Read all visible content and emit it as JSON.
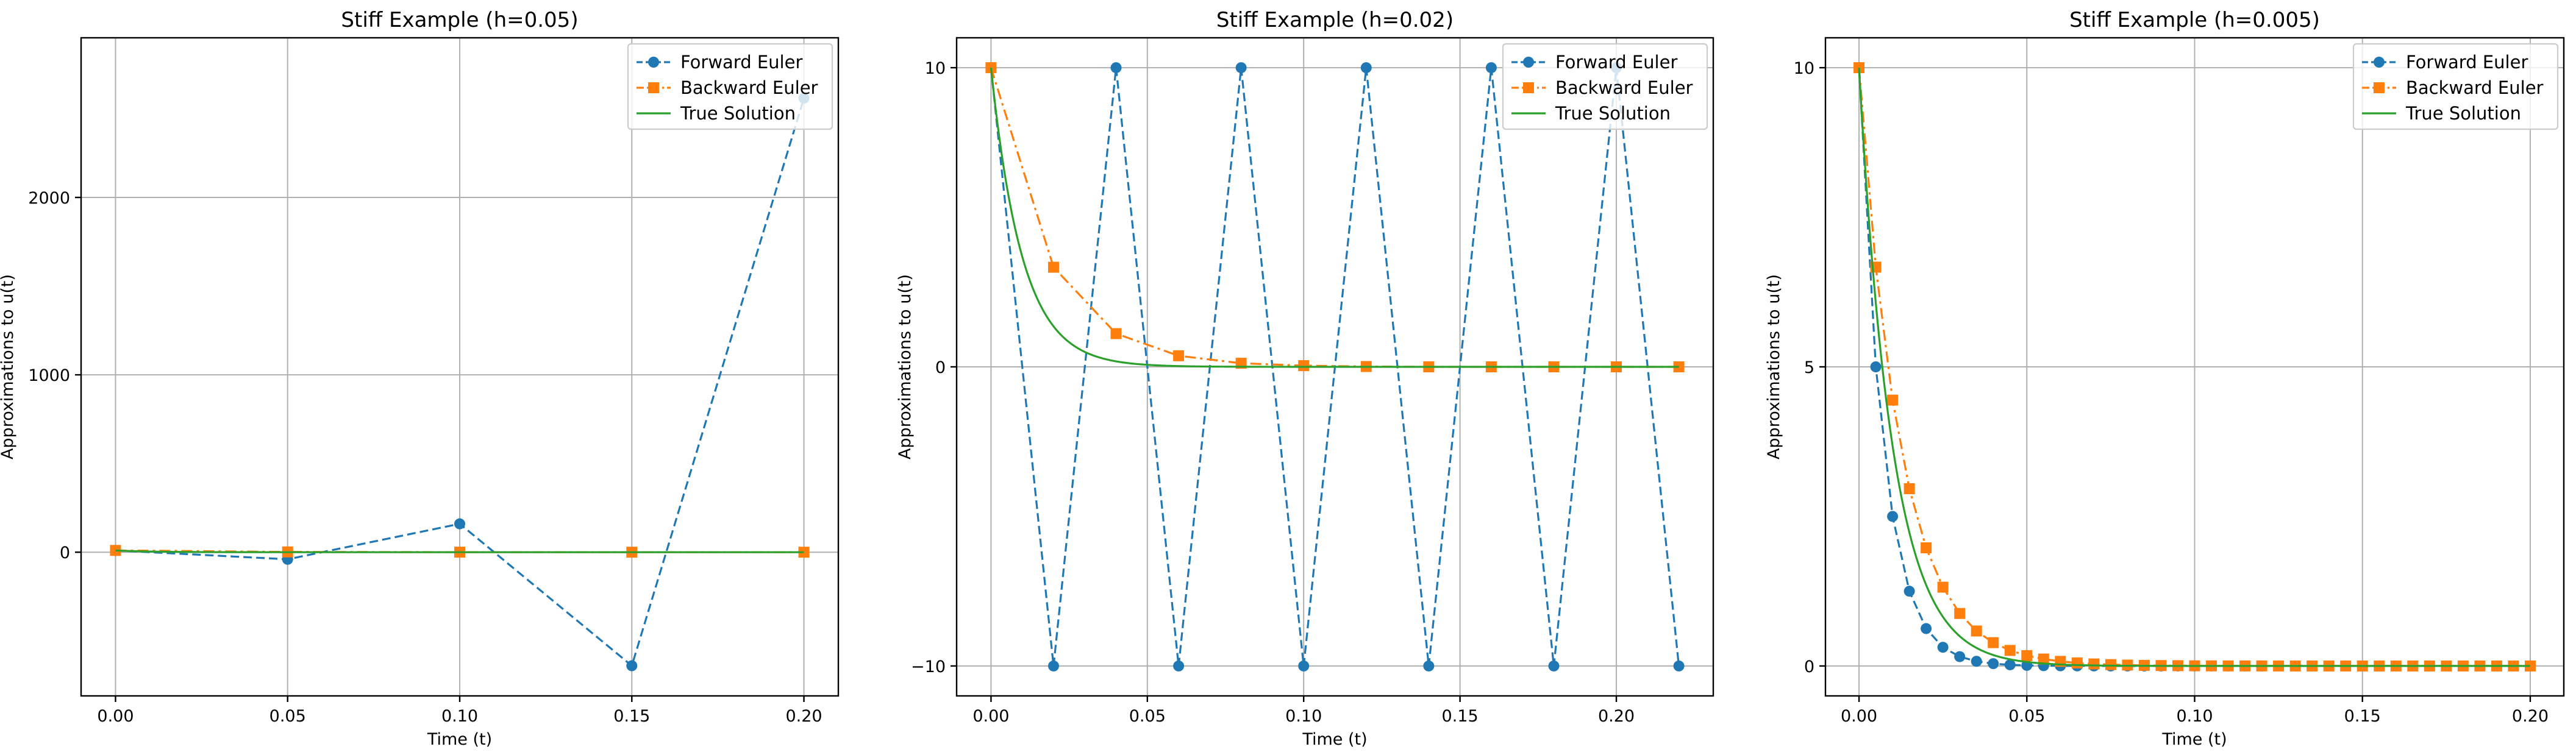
{
  "chart_data": [
    {
      "type": "line",
      "title": "Stiff Example (h=0.05)",
      "xlabel": "Time (t)",
      "ylabel": "Approximations to u(t)",
      "xlim": [
        -0.01,
        0.21
      ],
      "ylim": [
        -810,
        2900
      ],
      "xticks": [
        0.0,
        0.05,
        0.1,
        0.15,
        0.2
      ],
      "xtick_labels": [
        "0.00",
        "0.05",
        "0.10",
        "0.15",
        "0.20"
      ],
      "yticks": [
        0,
        1000,
        2000
      ],
      "ytick_labels": [
        "0",
        "1000",
        "2000"
      ],
      "grid": true,
      "legend_position": "top-right",
      "series": [
        {
          "name": "Forward Euler",
          "color": "#1f77b4",
          "linestyle": "dashed",
          "marker": "circle",
          "x": [
            0.0,
            0.05,
            0.1,
            0.15,
            0.2
          ],
          "y": [
            10,
            -40,
            160,
            -640,
            2560
          ]
        },
        {
          "name": "Backward Euler",
          "color": "#ff7f0e",
          "linestyle": "dashdot",
          "marker": "square",
          "x": [
            0.0,
            0.05,
            0.1,
            0.15,
            0.2
          ],
          "y": [
            10,
            1.67,
            0.28,
            0.05,
            0.01
          ]
        },
        {
          "name": "True Solution",
          "color": "#2ca02c",
          "linestyle": "solid",
          "marker": "none",
          "function": "10*exp(-100*t)",
          "xrange": [
            0.0,
            0.2
          ]
        }
      ]
    },
    {
      "type": "line",
      "title": "Stiff Example (h=0.02)",
      "xlabel": "Time (t)",
      "ylabel": "Approximations to u(t)",
      "xlim": [
        -0.011,
        0.231
      ],
      "ylim": [
        -11,
        11
      ],
      "xticks": [
        0.0,
        0.05,
        0.1,
        0.15,
        0.2
      ],
      "xtick_labels": [
        "0.00",
        "0.05",
        "0.10",
        "0.15",
        "0.20"
      ],
      "yticks": [
        -10,
        0,
        10
      ],
      "ytick_labels": [
        "−10",
        "0",
        "10"
      ],
      "grid": true,
      "legend_position": "top-right",
      "series": [
        {
          "name": "Forward Euler",
          "color": "#1f77b4",
          "linestyle": "dashed",
          "marker": "circle",
          "x": [
            0.0,
            0.02,
            0.04,
            0.06,
            0.08,
            0.1,
            0.12,
            0.14,
            0.16,
            0.18,
            0.2,
            0.22
          ],
          "y": [
            10,
            -10,
            10,
            -10,
            10,
            -10,
            10,
            -10,
            10,
            -10,
            10,
            -10
          ]
        },
        {
          "name": "Backward Euler",
          "color": "#ff7f0e",
          "linestyle": "dashdot",
          "marker": "square",
          "x": [
            0.0,
            0.02,
            0.04,
            0.06,
            0.08,
            0.1,
            0.12,
            0.14,
            0.16,
            0.18,
            0.2,
            0.22
          ],
          "y": [
            10,
            3.33,
            1.11,
            0.37,
            0.12,
            0.04,
            0.01,
            0.0,
            0.0,
            0.0,
            0.0,
            0.0
          ]
        },
        {
          "name": "True Solution",
          "color": "#2ca02c",
          "linestyle": "solid",
          "marker": "none",
          "function": "10*exp(-100*t)",
          "xrange": [
            0.0,
            0.22
          ]
        }
      ]
    },
    {
      "type": "line",
      "title": "Stiff Example (h=0.005)",
      "xlabel": "Time (t)",
      "ylabel": "Approximations to u(t)",
      "xlim": [
        -0.01,
        0.21
      ],
      "ylim": [
        -0.5,
        10.5
      ],
      "xticks": [
        0.0,
        0.05,
        0.1,
        0.15,
        0.2
      ],
      "xtick_labels": [
        "0.00",
        "0.05",
        "0.10",
        "0.15",
        "0.20"
      ],
      "yticks": [
        0,
        5,
        10
      ],
      "ytick_labels": [
        "0",
        "5",
        "10"
      ],
      "grid": true,
      "legend_position": "top-right",
      "series": [
        {
          "name": "Forward Euler",
          "color": "#1f77b4",
          "linestyle": "dashed",
          "marker": "circle",
          "x": [
            0.0,
            0.005,
            0.01,
            0.015,
            0.02,
            0.025,
            0.03,
            0.035,
            0.04,
            0.045,
            0.05,
            0.055,
            0.06,
            0.065,
            0.07,
            0.075,
            0.08,
            0.085,
            0.09,
            0.095,
            0.1,
            0.105,
            0.11,
            0.115,
            0.12,
            0.125,
            0.13,
            0.135,
            0.14,
            0.145,
            0.15,
            0.155,
            0.16,
            0.165,
            0.17,
            0.175,
            0.18,
            0.185,
            0.19,
            0.195,
            0.2
          ],
          "y": [
            10,
            5,
            2.5,
            1.25,
            0.625,
            0.3125,
            0.156,
            0.078,
            0.039,
            0.0195,
            0.0098,
            0.0049,
            0.0024,
            0.0012,
            0.0006,
            0.0003,
            0.00015,
            0.0001,
            0,
            0,
            0,
            0,
            0,
            0,
            0,
            0,
            0,
            0,
            0,
            0,
            0,
            0,
            0,
            0,
            0,
            0,
            0,
            0,
            0,
            0,
            0
          ]
        },
        {
          "name": "Backward Euler",
          "color": "#ff7f0e",
          "linestyle": "dashdot",
          "marker": "square",
          "x": [
            0.0,
            0.005,
            0.01,
            0.015,
            0.02,
            0.025,
            0.03,
            0.035,
            0.04,
            0.045,
            0.05,
            0.055,
            0.06,
            0.065,
            0.07,
            0.075,
            0.08,
            0.085,
            0.09,
            0.095,
            0.1,
            0.105,
            0.11,
            0.115,
            0.12,
            0.125,
            0.13,
            0.135,
            0.14,
            0.145,
            0.15,
            0.155,
            0.16,
            0.165,
            0.17,
            0.175,
            0.18,
            0.185,
            0.19,
            0.195,
            0.2
          ],
          "y": [
            10,
            6.667,
            4.444,
            2.963,
            1.975,
            1.317,
            0.878,
            0.585,
            0.39,
            0.26,
            0.173,
            0.116,
            0.077,
            0.051,
            0.034,
            0.023,
            0.015,
            0.01,
            0.007,
            0.005,
            0.003,
            0.002,
            0.001,
            0.001,
            0.001,
            0,
            0,
            0,
            0,
            0,
            0,
            0,
            0,
            0,
            0,
            0,
            0,
            0,
            0,
            0,
            0
          ]
        },
        {
          "name": "True Solution",
          "color": "#2ca02c",
          "linestyle": "solid",
          "marker": "none",
          "function": "10*exp(-100*t)",
          "xrange": [
            0.0,
            0.2
          ]
        }
      ]
    }
  ]
}
